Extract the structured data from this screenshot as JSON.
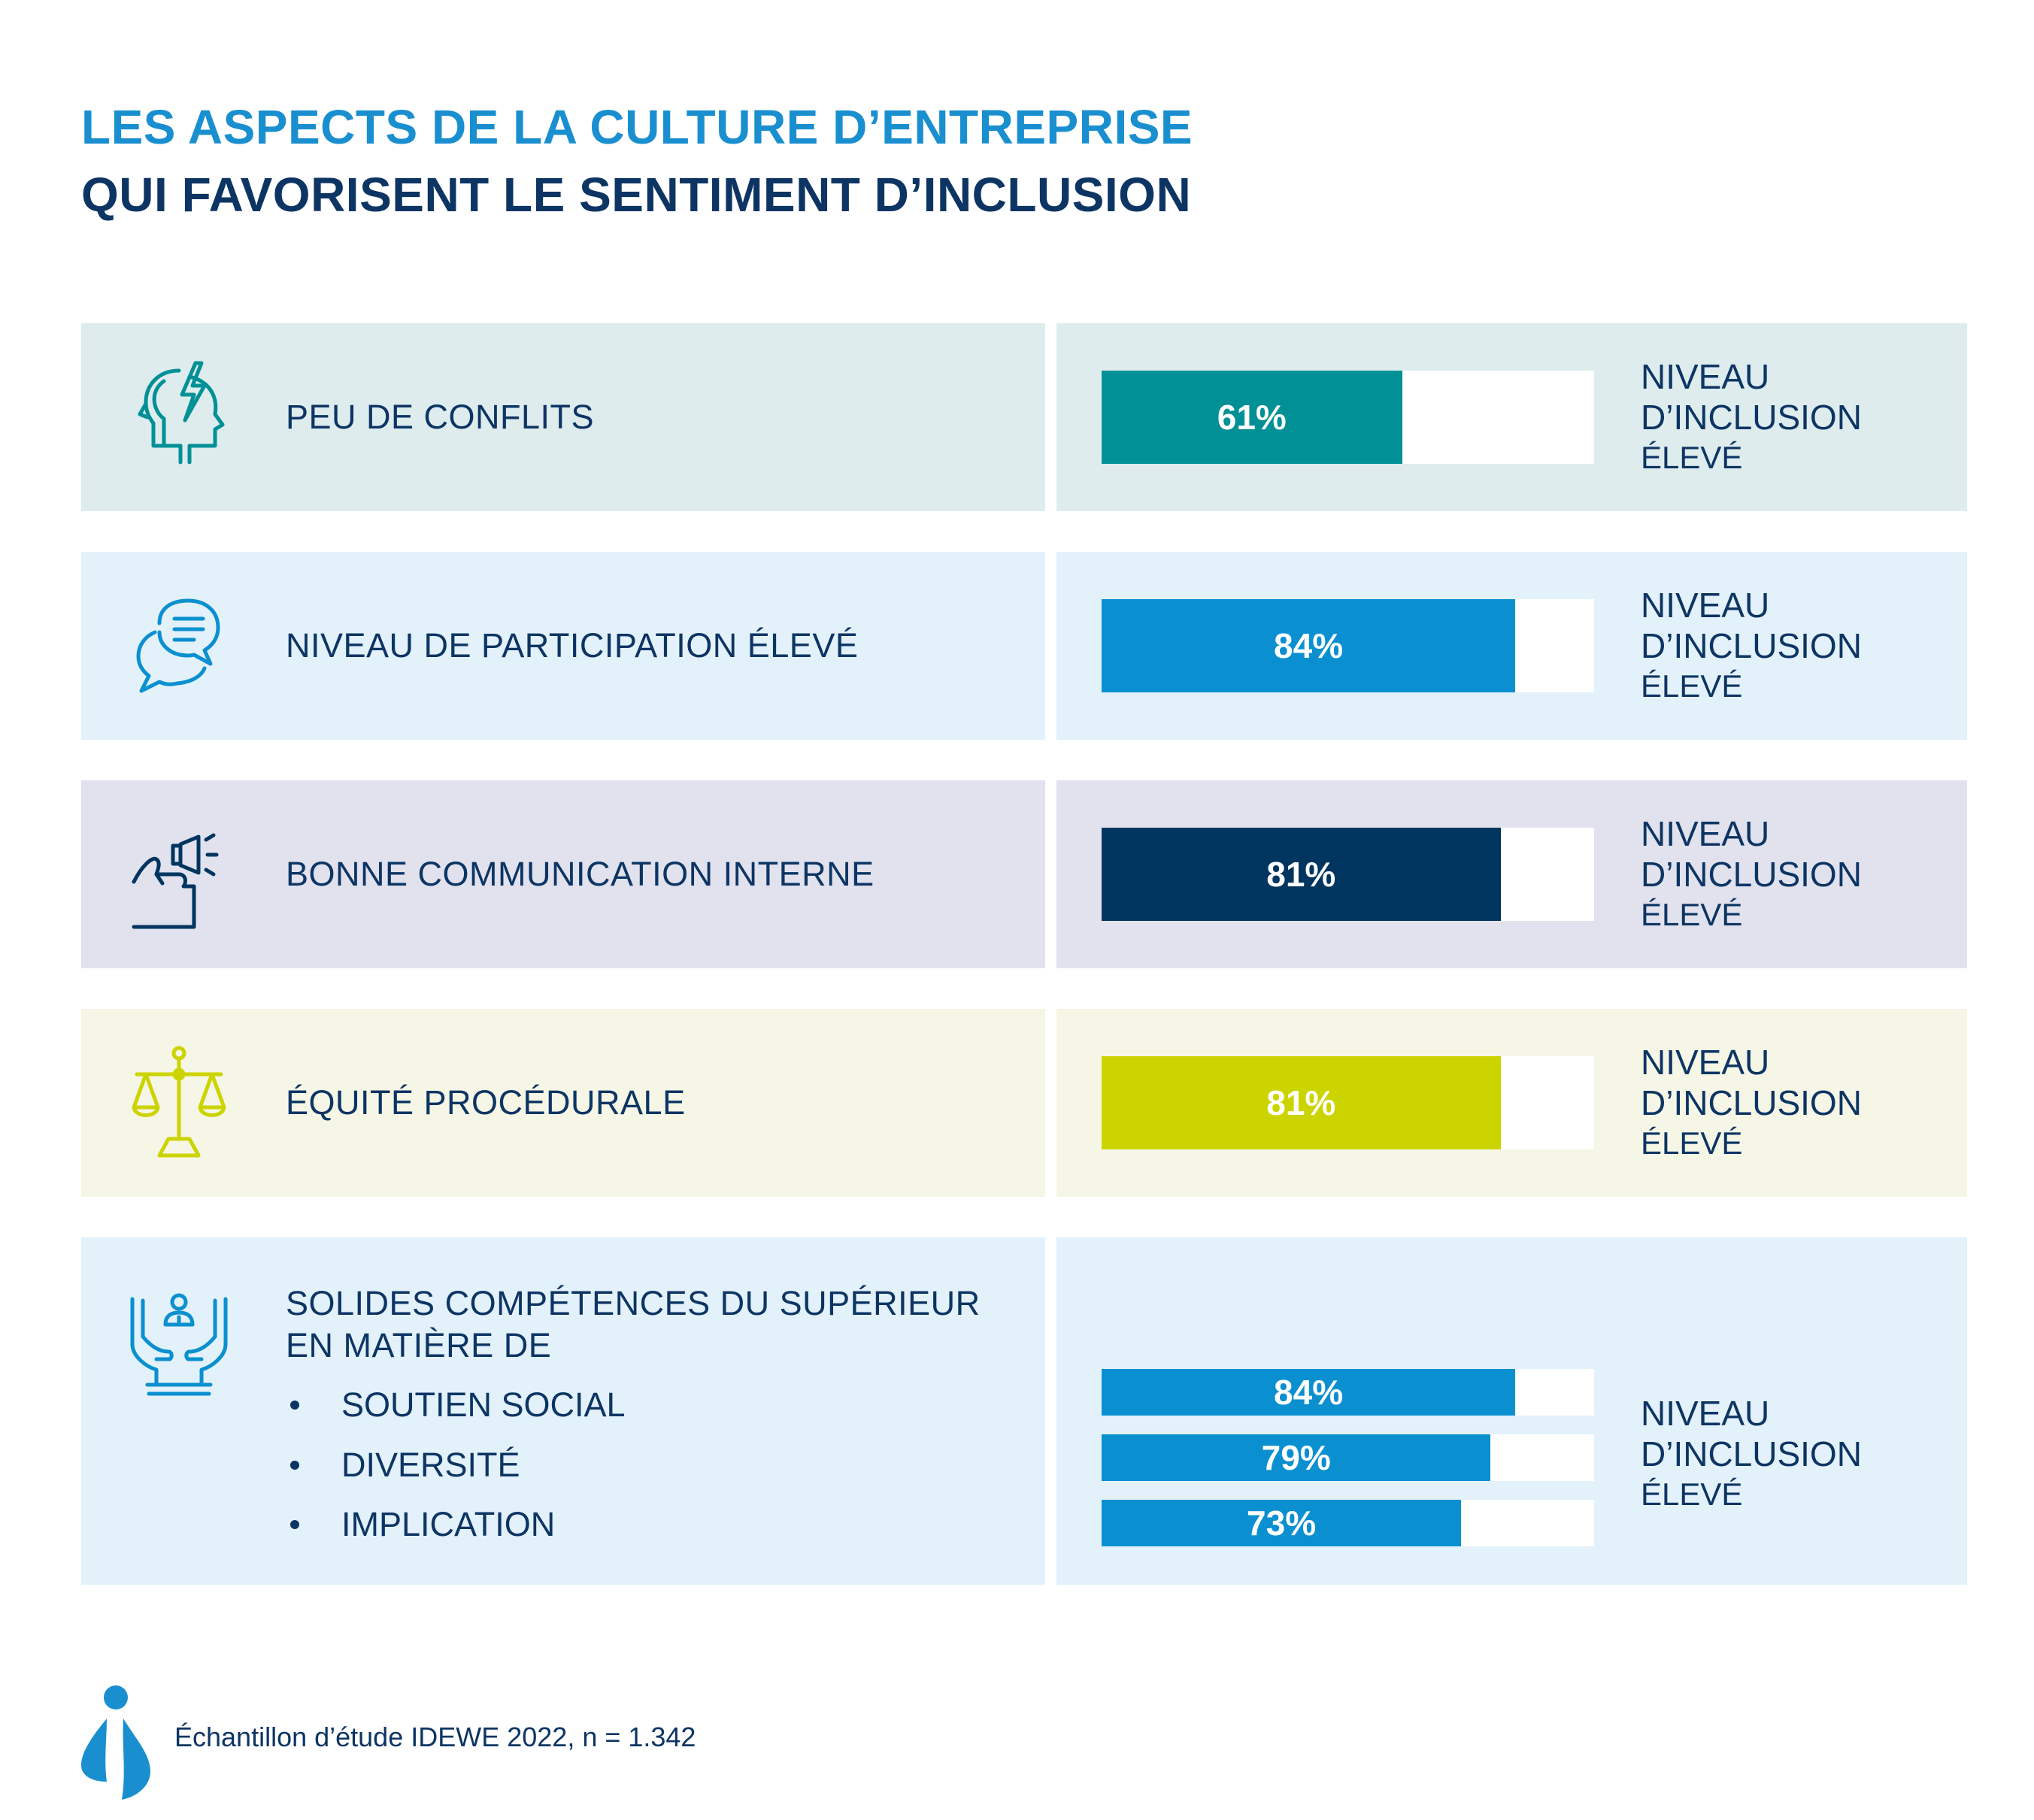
{
  "title_line1": "LES ASPECTS DE LA CULTURE D’ENTREPRISE",
  "title_line2": "QUI FAVORISENT LE SENTIMENT D’INCLUSION",
  "legend": {
    "line1": "NIVEAU",
    "line2": "D’INCLUSION",
    "line3": "ÉLEVÉ"
  },
  "rows": [
    {
      "label": "PEU DE CONFLITS",
      "icon": "head-conflict-icon",
      "value_label": "61%"
    },
    {
      "label": "NIVEAU DE PARTICIPATION ÉLEVÉ",
      "icon": "speech-bubbles-icon",
      "value_label": "84%"
    },
    {
      "label": "BONNE COMMUNICATION INTERNE",
      "icon": "megaphone-hand-icon",
      "value_label": "81%"
    },
    {
      "label": "ÉQUITÉ PROCÉDURALE",
      "icon": "scales-icon",
      "value_label": "81%"
    },
    {
      "label_line1": "SOLIDES COMPÉTENCES DU SUPÉRIEUR",
      "label_line2": "EN MATIÈRE DE",
      "icon": "hands-person-icon",
      "items": [
        "SOUTIEN SOCIAL",
        "DIVERSITÉ",
        "IMPLICATION"
      ],
      "value_labels": [
        "84%",
        "79%",
        "73%"
      ]
    }
  ],
  "colors": {
    "teal": "#009096",
    "blue": "#0a90d0",
    "navy": "#003560",
    "lime": "#ccd400",
    "bg_teal": "#deecee",
    "bg_blue": "#e3f1fa",
    "bg_navy": "#e1e2ee",
    "bg_lime": "#f6f6e6"
  },
  "chart_data": {
    "type": "bar",
    "categories": [
      "PEU DE CONFLITS",
      "NIVEAU DE PARTICIPATION ÉLEVÉ",
      "BONNE COMMUNICATION INTERNE",
      "ÉQUITÉ PROCÉDURALE",
      "SOUTIEN SOCIAL",
      "DIVERSITÉ",
      "IMPLICATION"
    ],
    "values": [
      61,
      84,
      81,
      81,
      84,
      79,
      73
    ],
    "ylim": [
      0,
      100
    ]
  },
  "footer": {
    "source": "Échantillon d’étude IDEWE 2022, n = 1.342"
  }
}
